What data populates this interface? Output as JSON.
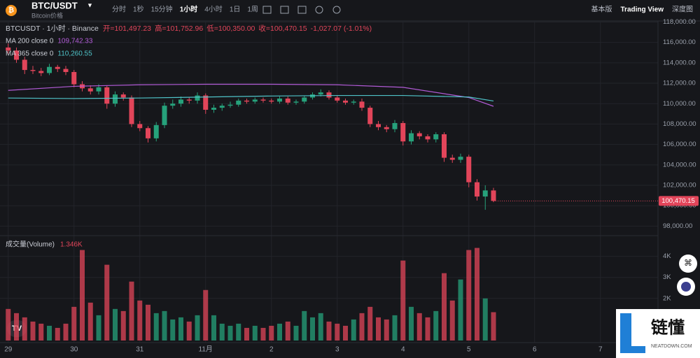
{
  "chart_data": {
    "type": "candlestick",
    "title": "BTC/USDT",
    "subtitle": "Bitcoin价格",
    "toolbar": {
      "intervals": [
        "分时",
        "1秒",
        "15分钟",
        "1小时",
        "4小时",
        "1日",
        "1周"
      ],
      "views": [
        "基本版",
        "Trading View",
        "深度图"
      ]
    },
    "symbol_line": "BTCUSDT · 1小时 · Binance",
    "ohlc_texts": [
      "开=101,497.23",
      "高=101,752.96",
      "低=100,350.00",
      "收=100,470.15",
      "-1,027.07 (-1.01%)"
    ],
    "x": [
      0,
      3,
      6,
      9,
      12,
      15,
      18,
      21,
      24,
      27,
      30,
      33,
      36,
      39,
      42,
      45,
      48,
      51,
      54,
      57,
      60,
      63,
      66,
      69,
      72,
      75,
      78,
      81,
      84,
      87,
      90,
      93,
      96,
      99,
      102,
      105,
      108,
      111,
      114,
      117,
      120,
      123,
      126,
      129,
      132,
      135,
      138,
      141,
      144,
      147,
      150,
      153,
      156,
      159,
      162,
      165,
      168,
      171,
      174,
      177
    ],
    "open": [
      115500,
      115200,
      114300,
      113300,
      113200,
      113000,
      113600,
      113400,
      113100,
      111900,
      111500,
      111200,
      111600,
      110000,
      110900,
      110600,
      108000,
      107600,
      106600,
      107900,
      109800,
      110000,
      110400,
      110300,
      110800,
      109400,
      109600,
      109800,
      109900,
      110300,
      110200,
      110400,
      110300,
      110200,
      110500,
      110100,
      110200,
      110600,
      110900,
      111100,
      110600,
      110300,
      110100,
      110200,
      109600,
      108000,
      107700,
      107500,
      108100,
      106300,
      107100,
      106800,
      106500,
      107000,
      104700,
      104500,
      104800,
      102300,
      100900,
      101497.23
    ],
    "high": [
      115900,
      115500,
      114600,
      113700,
      113500,
      113900,
      113800,
      113700,
      113300,
      112200,
      111800,
      111900,
      111800,
      111200,
      111100,
      110800,
      108300,
      107800,
      108200,
      110100,
      110400,
      110700,
      110600,
      111100,
      111000,
      109900,
      110000,
      110200,
      110500,
      110500,
      110600,
      110600,
      110500,
      110700,
      110700,
      110400,
      110800,
      111100,
      111400,
      111300,
      110800,
      110500,
      110400,
      110500,
      109800,
      108300,
      107900,
      108400,
      108300,
      107400,
      107300,
      107000,
      107200,
      107200,
      105000,
      105100,
      105000,
      102600,
      102000,
      101752.96
    ],
    "low": [
      114900,
      114000,
      112900,
      112900,
      112700,
      112800,
      113100,
      112800,
      111600,
      111200,
      110900,
      110900,
      109500,
      109700,
      110300,
      107700,
      107300,
      106200,
      106300,
      107600,
      109500,
      109700,
      110000,
      110000,
      109000,
      109100,
      109300,
      109600,
      109700,
      110000,
      110000,
      110100,
      110000,
      110000,
      109900,
      109900,
      110000,
      110400,
      110700,
      110400,
      110100,
      109900,
      109900,
      109300,
      107700,
      107400,
      107200,
      107200,
      105900,
      106000,
      106500,
      106200,
      106200,
      104300,
      104200,
      104200,
      101800,
      100500,
      99600,
      100350
    ],
    "close": [
      115200,
      114300,
      113300,
      113200,
      113000,
      113600,
      113400,
      113100,
      111900,
      111500,
      111200,
      111600,
      110000,
      110900,
      110600,
      108000,
      107600,
      106600,
      107900,
      109800,
      110000,
      110400,
      110300,
      110800,
      109400,
      109600,
      109800,
      109900,
      110300,
      110200,
      110400,
      110300,
      110200,
      110500,
      110100,
      110200,
      110600,
      110900,
      111100,
      110600,
      110300,
      110100,
      110200,
      109600,
      108000,
      107700,
      107500,
      108100,
      106300,
      107100,
      106800,
      106500,
      107000,
      104700,
      104500,
      104800,
      102300,
      100900,
      101497.23,
      100470.15
    ],
    "last_price_label": "100,470.15",
    "up_color": "#26a17b",
    "down_color": "#e2455a",
    "xlim": [
      -3,
      237
    ],
    "xticks": [
      {
        "value": 0,
        "label": "29"
      },
      {
        "value": 24,
        "label": "30"
      },
      {
        "value": 48,
        "label": "31"
      },
      {
        "value": 72,
        "label": "11月"
      },
      {
        "value": 96,
        "label": "2"
      },
      {
        "value": 120,
        "label": "3"
      },
      {
        "value": 144,
        "label": "4"
      },
      {
        "value": 168,
        "label": "5"
      },
      {
        "value": 192,
        "label": "6"
      },
      {
        "value": 216,
        "label": "7"
      }
    ],
    "ylim": [
      97000,
      118100
    ],
    "yticks": [
      {
        "value": 98000,
        "label": "98,000.00"
      },
      {
        "value": 100000,
        "label": "100,000.00"
      },
      {
        "value": 102000,
        "label": "102,000.00"
      },
      {
        "value": 104000,
        "label": "104,000.00"
      },
      {
        "value": 106000,
        "label": "106,000.00"
      },
      {
        "value": 108000,
        "label": "108,000.00"
      },
      {
        "value": 110000,
        "label": "110,000.00"
      },
      {
        "value": 112000,
        "label": "112,000.00"
      },
      {
        "value": 114000,
        "label": "114,000.00"
      },
      {
        "value": 116000,
        "label": "116,000.00"
      },
      {
        "value": 118000,
        "label": "118,000.00"
      }
    ],
    "grid": true,
    "ma_lines": [
      {
        "name": "MA 200 close 0",
        "color": "#b15bd6",
        "x": [
          0,
          24,
          48,
          72,
          96,
          120,
          144,
          168,
          177
        ],
        "values": [
          111300,
          111700,
          111850,
          111900,
          111900,
          111850,
          111600,
          110600,
          109742.33
        ],
        "value_label": "109,742.33"
      },
      {
        "name": "MA 365 close 0",
        "color": "#4fc3c8",
        "x": [
          0,
          24,
          48,
          72,
          96,
          120,
          144,
          168,
          177
        ],
        "values": [
          110550,
          110500,
          110550,
          110650,
          110750,
          110800,
          110800,
          110650,
          110260.55
        ],
        "value_label": "110,260.55"
      }
    ],
    "volume": {
      "title": "成交量(Volume)",
      "values": [
        1500,
        1300,
        1100,
        900,
        800,
        700,
        600,
        800,
        1600,
        4300,
        1800,
        1200,
        3600,
        1500,
        1400,
        2800,
        1900,
        1700,
        1300,
        1400,
        1000,
        1100,
        900,
        1200,
        2400,
        1200,
        800,
        700,
        800,
        600,
        700,
        600,
        700,
        800,
        900,
        700,
        1400,
        1100,
        1300,
        900,
        800,
        700,
        1000,
        1300,
        1600,
        1100,
        1000,
        1200,
        3800,
        1600,
        1300,
        1100,
        1400,
        3200,
        1900,
        2900,
        4300,
        4400,
        2000,
        1346
      ],
      "last_label": "1.346K",
      "ylim": [
        0,
        4950
      ],
      "yticks": [
        {
          "value": 2000,
          "label": "2K"
        },
        {
          "value": 3000,
          "label": "3K"
        },
        {
          "value": 4000,
          "label": "4K"
        }
      ]
    }
  },
  "watermark": {
    "brand": "链懂",
    "site": "NEATDOWN.COM"
  }
}
